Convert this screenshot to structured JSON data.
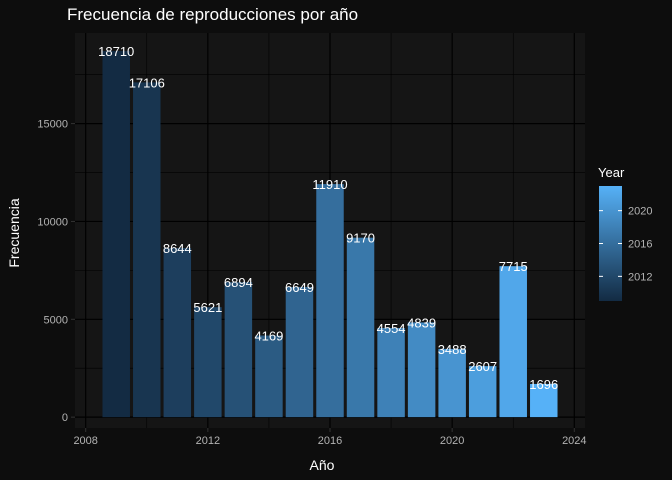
{
  "chart_data": {
    "type": "bar",
    "title": "Frecuencia de reproducciones por año",
    "xlabel": "Año",
    "ylabel": "Frecuencia",
    "x": [
      2009,
      2010,
      2011,
      2012,
      2013,
      2014,
      2015,
      2016,
      2017,
      2018,
      2019,
      2020,
      2021,
      2022,
      2023
    ],
    "values": [
      18710,
      17106,
      8644,
      5621,
      6894,
      4169,
      6649,
      11910,
      9170,
      4554,
      4839,
      3488,
      2607,
      7715,
      1696
    ],
    "data_labels": [
      "18710",
      "17106",
      "8644",
      "5621",
      "6894",
      "4169",
      "6649",
      "11910",
      "9170",
      "4554",
      "4839",
      "3488",
      "2607",
      "7715",
      "1696"
    ],
    "xlim": [
      2008,
      2024
    ],
    "ylim": [
      0,
      19000
    ],
    "x_ticks": [
      "2008",
      "2012",
      "2016",
      "2020",
      "2024"
    ],
    "y_ticks": [
      "0",
      "5000",
      "10000",
      "15000"
    ],
    "grid": true,
    "color_scale": {
      "variable": "Year",
      "low_color": "#132B43",
      "high_color": "#56B1F7",
      "range": [
        2009,
        2023
      ]
    },
    "legend": {
      "title": "Year",
      "position": "right",
      "labels": [
        "2012",
        "2016",
        "2020"
      ]
    },
    "background_color": "#0d0d0d",
    "panel_color": "#151515",
    "grid_color": "#000000"
  }
}
